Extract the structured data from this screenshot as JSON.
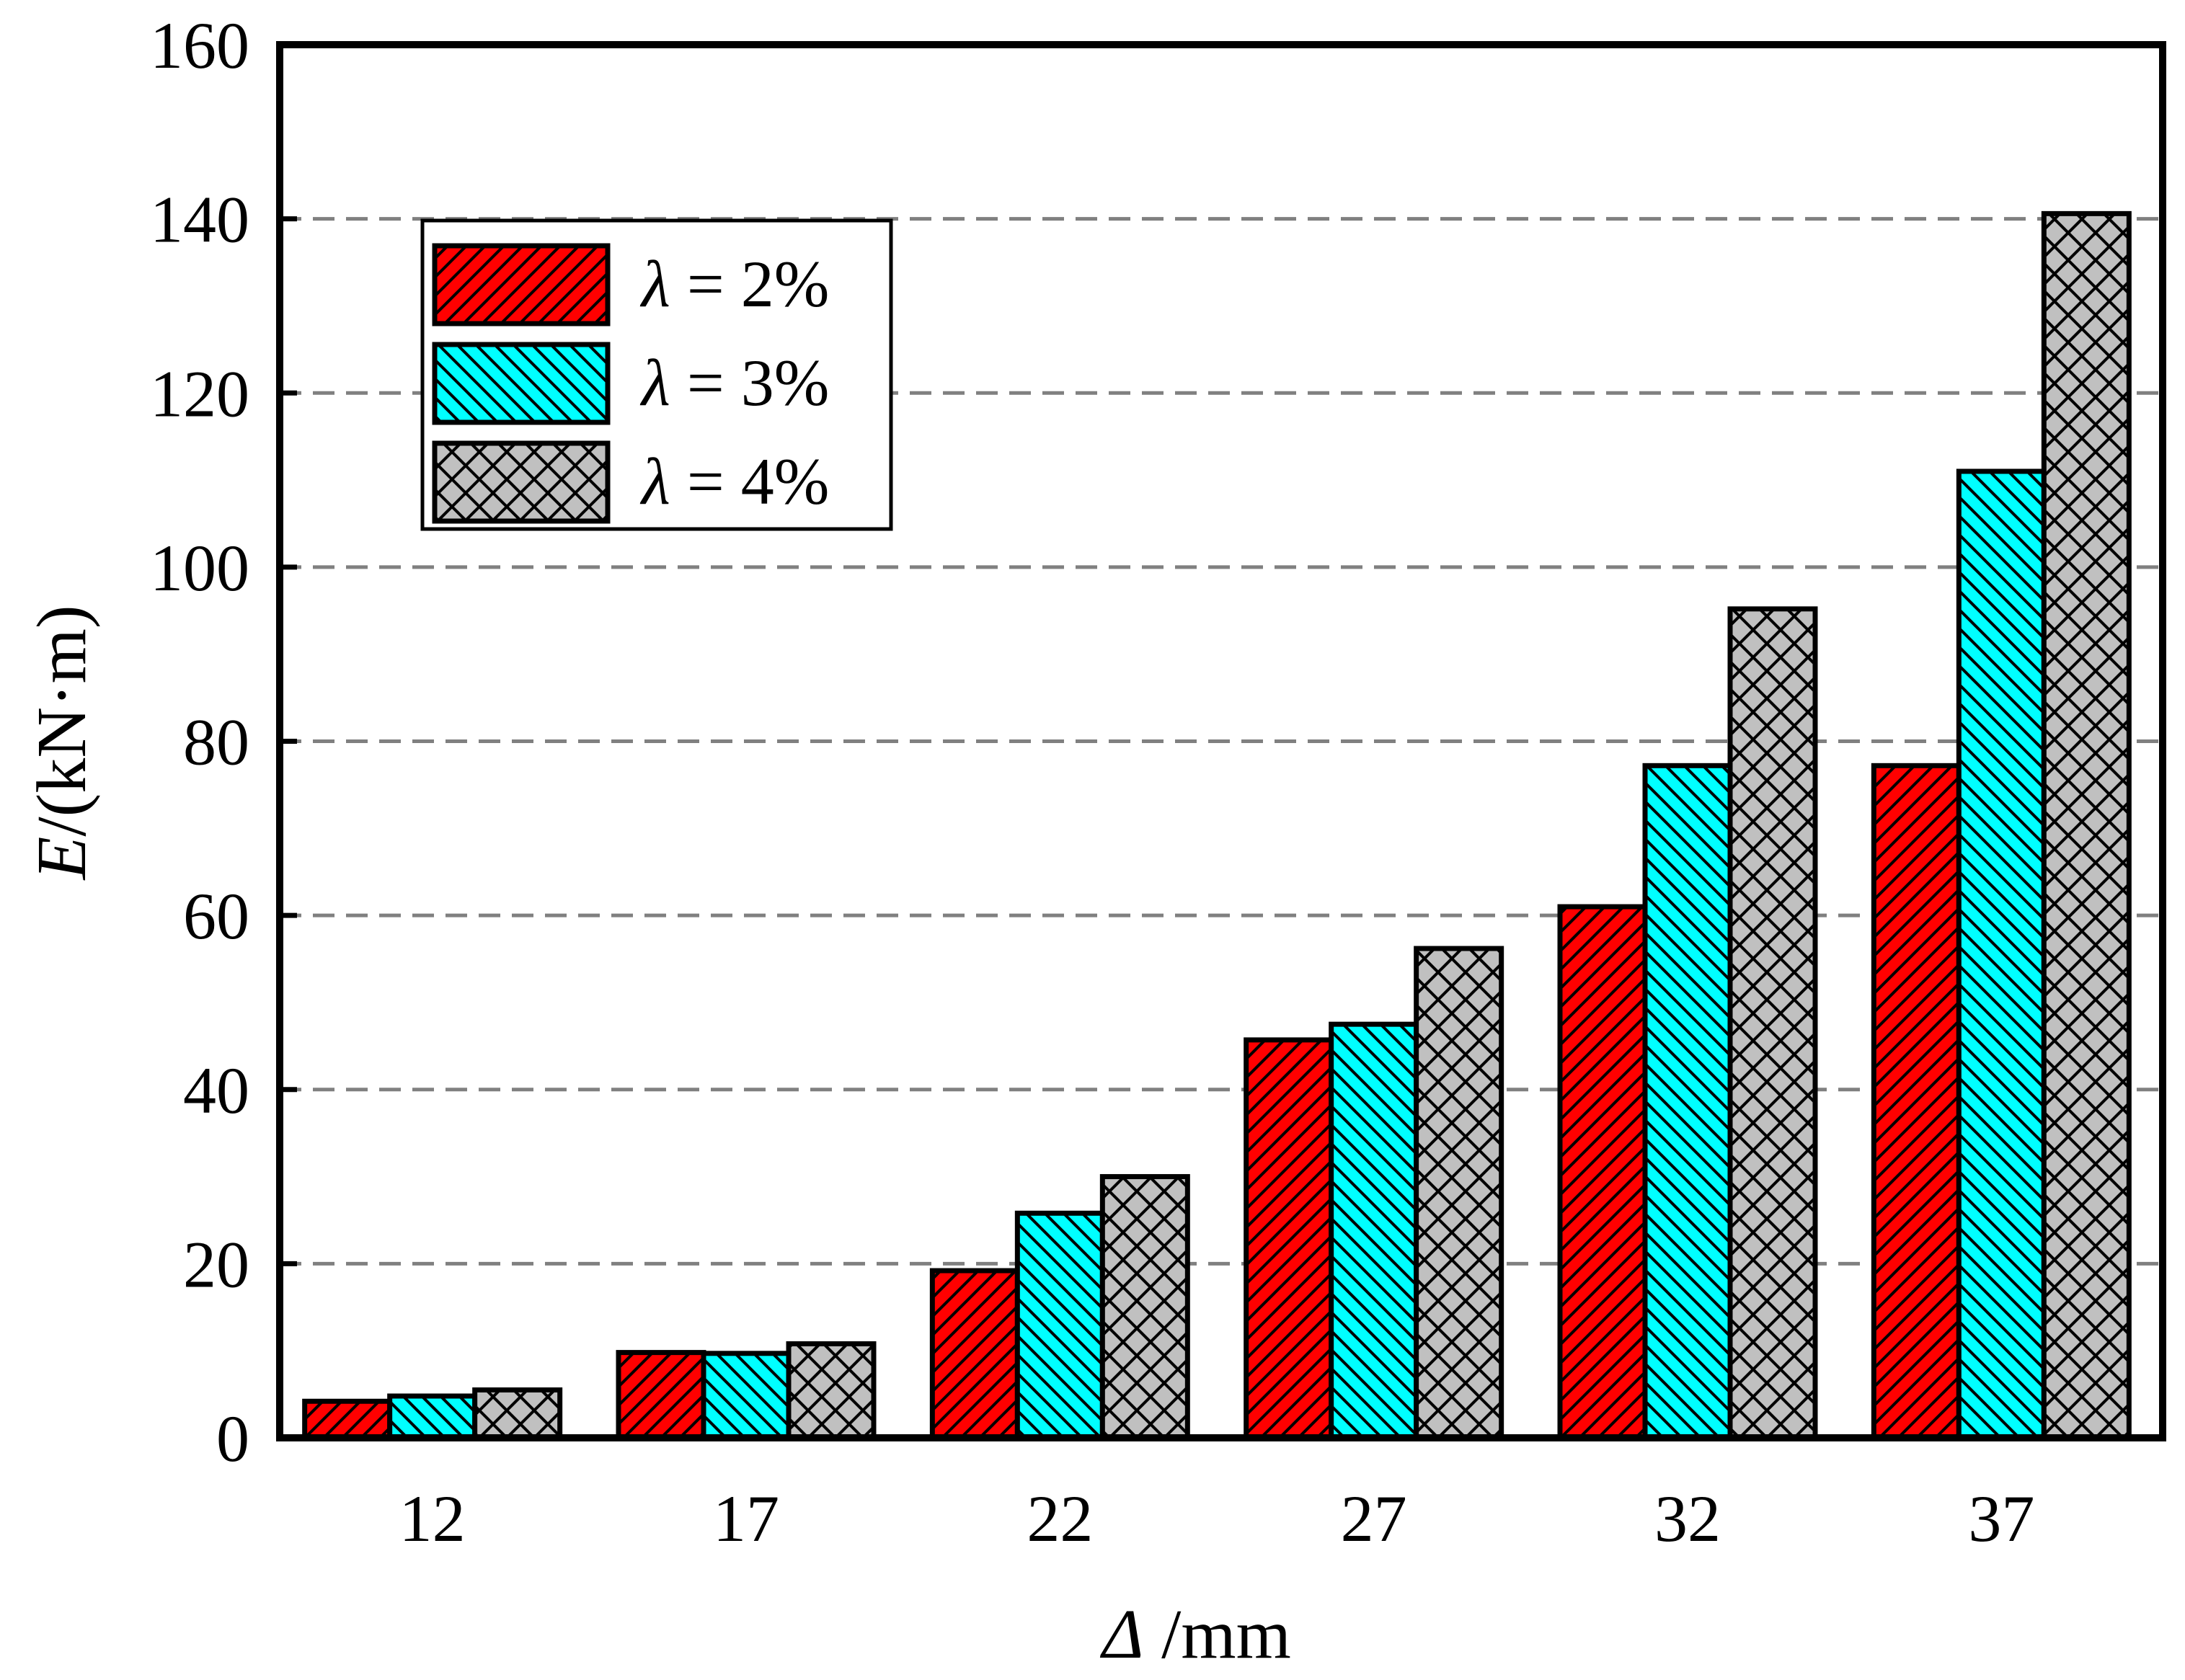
{
  "chart_data": {
    "type": "bar",
    "categories": [
      "12",
      "17",
      "22",
      "27",
      "32",
      "37"
    ],
    "series": [
      {
        "name_symbol": "λ",
        "name_rest": " = 2%",
        "color": "#ff0000",
        "pattern": "hatch-slash",
        "values": [
          4.2,
          9.8,
          19.2,
          45.7,
          61.0,
          77.2
        ]
      },
      {
        "name_symbol": "λ",
        "name_rest": " = 3%",
        "color": "#00ffff",
        "pattern": "hatch-backslash",
        "values": [
          4.8,
          9.7,
          25.8,
          47.5,
          77.2,
          111.0
        ]
      },
      {
        "name_symbol": "λ",
        "name_rest": " = 4%",
        "color": "#c0c0c0",
        "pattern": "crosshatch",
        "values": [
          5.5,
          10.8,
          30.0,
          56.2,
          95.2,
          140.6
        ]
      }
    ],
    "xlabel_symbol": "Δ",
    "xlabel_rest": " /mm",
    "ylabel_symbol": "E",
    "ylabel_rest": "/(kN·m)",
    "ylim": [
      0,
      160
    ],
    "yticks": [
      "0",
      "20",
      "40",
      "60",
      "80",
      "100",
      "120",
      "140",
      "160"
    ],
    "grid": "horizontal-dashed",
    "legend_position": "top-left"
  }
}
